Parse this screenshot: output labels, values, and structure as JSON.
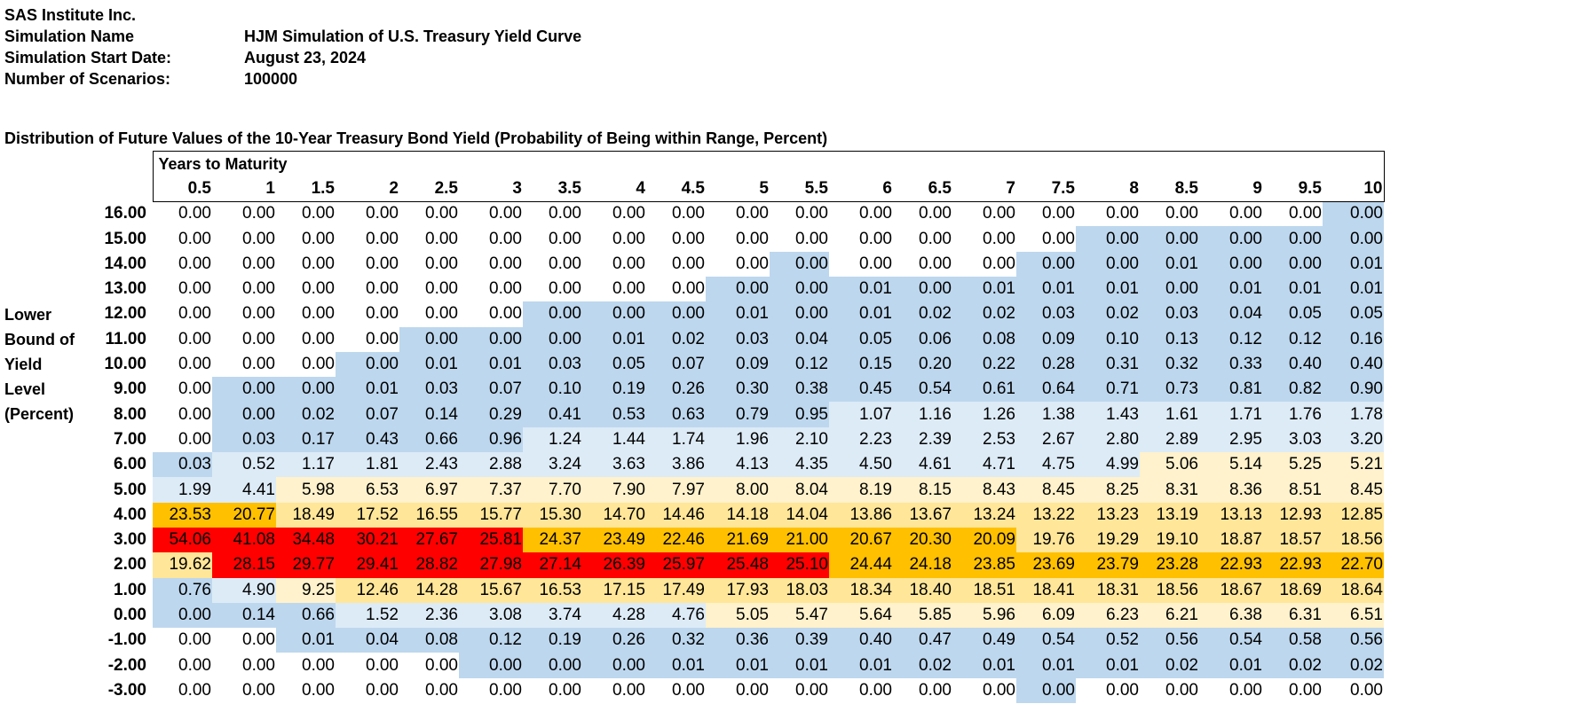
{
  "header": {
    "company": "SAS Institute Inc.",
    "simulation_name_label": "Simulation Name",
    "simulation_name": "HJM Simulation of U.S. Treasury Yield Curve",
    "start_date_label": "Simulation Start Date:",
    "start_date": "August 23, 2024",
    "scenarios_label": "Number of Scenarios:",
    "scenarios": "100000"
  },
  "table_title": "Distribution of Future Values of the 10-Year Treasury Bond Yield (Probability of Being within Range, Percent)",
  "years_header": "Years to Maturity",
  "row_axis_label": "Lower Bound of Yield Level (Percent)",
  "row_axis_label_lines": [
    "Lower",
    "Bound of",
    "Yield",
    "Level",
    "(Percent)"
  ],
  "years": [
    "0.5",
    "1",
    "1.5",
    "2",
    "2.5",
    "3",
    "3.5",
    "4",
    "4.5",
    "5",
    "5.5",
    "6",
    "6.5",
    "7",
    "7.5",
    "8",
    "8.5",
    "9",
    "9.5",
    "10"
  ],
  "colors": {
    "white": "#ffffff",
    "blue": "#bdd7ee",
    "lightblue": "#ddebf7",
    "lightyellow": "#fff2cc",
    "lightorange": "#ffe699",
    "orange": "#ffc000",
    "red": "#ff0000"
  },
  "rows": [
    {
      "label": "16.00",
      "values": [
        "0.00",
        "0.00",
        "0.00",
        "0.00",
        "0.00",
        "0.00",
        "0.00",
        "0.00",
        "0.00",
        "0.00",
        "0.00",
        "0.00",
        "0.00",
        "0.00",
        "0.00",
        "0.00",
        "0.00",
        "0.00",
        "0.00",
        "0.00"
      ],
      "shades": [
        "white",
        "white",
        "white",
        "white",
        "white",
        "white",
        "white",
        "white",
        "white",
        "white",
        "white",
        "white",
        "white",
        "white",
        "white",
        "white",
        "white",
        "white",
        "white",
        "blue"
      ]
    },
    {
      "label": "15.00",
      "values": [
        "0.00",
        "0.00",
        "0.00",
        "0.00",
        "0.00",
        "0.00",
        "0.00",
        "0.00",
        "0.00",
        "0.00",
        "0.00",
        "0.00",
        "0.00",
        "0.00",
        "0.00",
        "0.00",
        "0.00",
        "0.00",
        "0.00",
        "0.00"
      ],
      "shades": [
        "white",
        "white",
        "white",
        "white",
        "white",
        "white",
        "white",
        "white",
        "white",
        "white",
        "white",
        "white",
        "white",
        "white",
        "white",
        "blue",
        "blue",
        "blue",
        "blue",
        "blue"
      ]
    },
    {
      "label": "14.00",
      "values": [
        "0.00",
        "0.00",
        "0.00",
        "0.00",
        "0.00",
        "0.00",
        "0.00",
        "0.00",
        "0.00",
        "0.00",
        "0.00",
        "0.00",
        "0.00",
        "0.00",
        "0.00",
        "0.00",
        "0.01",
        "0.00",
        "0.00",
        "0.01"
      ],
      "shades": [
        "white",
        "white",
        "white",
        "white",
        "white",
        "white",
        "white",
        "white",
        "white",
        "white",
        "blue",
        "white",
        "white",
        "white",
        "blue",
        "blue",
        "blue",
        "blue",
        "blue",
        "blue"
      ]
    },
    {
      "label": "13.00",
      "values": [
        "0.00",
        "0.00",
        "0.00",
        "0.00",
        "0.00",
        "0.00",
        "0.00",
        "0.00",
        "0.00",
        "0.00",
        "0.00",
        "0.01",
        "0.00",
        "0.01",
        "0.01",
        "0.01",
        "0.00",
        "0.01",
        "0.01",
        "0.01"
      ],
      "shades": [
        "white",
        "white",
        "white",
        "white",
        "white",
        "white",
        "white",
        "white",
        "white",
        "blue",
        "blue",
        "blue",
        "blue",
        "blue",
        "blue",
        "blue",
        "blue",
        "blue",
        "blue",
        "blue"
      ]
    },
    {
      "label": "12.00",
      "values": [
        "0.00",
        "0.00",
        "0.00",
        "0.00",
        "0.00",
        "0.00",
        "0.00",
        "0.00",
        "0.00",
        "0.01",
        "0.00",
        "0.01",
        "0.02",
        "0.02",
        "0.03",
        "0.02",
        "0.03",
        "0.04",
        "0.05",
        "0.05"
      ],
      "shades": [
        "white",
        "white",
        "white",
        "white",
        "white",
        "white",
        "blue",
        "blue",
        "blue",
        "blue",
        "blue",
        "blue",
        "blue",
        "blue",
        "blue",
        "blue",
        "blue",
        "blue",
        "blue",
        "blue"
      ]
    },
    {
      "label": "11.00",
      "values": [
        "0.00",
        "0.00",
        "0.00",
        "0.00",
        "0.00",
        "0.00",
        "0.00",
        "0.01",
        "0.02",
        "0.03",
        "0.04",
        "0.05",
        "0.06",
        "0.08",
        "0.09",
        "0.10",
        "0.13",
        "0.12",
        "0.12",
        "0.16"
      ],
      "shades": [
        "white",
        "white",
        "white",
        "white",
        "blue",
        "blue",
        "blue",
        "blue",
        "blue",
        "blue",
        "blue",
        "blue",
        "blue",
        "blue",
        "blue",
        "blue",
        "blue",
        "blue",
        "blue",
        "blue"
      ]
    },
    {
      "label": "10.00",
      "values": [
        "0.00",
        "0.00",
        "0.00",
        "0.00",
        "0.01",
        "0.01",
        "0.03",
        "0.05",
        "0.07",
        "0.09",
        "0.12",
        "0.15",
        "0.20",
        "0.22",
        "0.28",
        "0.31",
        "0.32",
        "0.33",
        "0.40",
        "0.40"
      ],
      "shades": [
        "white",
        "white",
        "white",
        "blue",
        "blue",
        "blue",
        "blue",
        "blue",
        "blue",
        "blue",
        "blue",
        "blue",
        "blue",
        "blue",
        "blue",
        "blue",
        "blue",
        "blue",
        "blue",
        "blue"
      ]
    },
    {
      "label": "9.00",
      "values": [
        "0.00",
        "0.00",
        "0.00",
        "0.01",
        "0.03",
        "0.07",
        "0.10",
        "0.19",
        "0.26",
        "0.30",
        "0.38",
        "0.45",
        "0.54",
        "0.61",
        "0.64",
        "0.71",
        "0.73",
        "0.81",
        "0.82",
        "0.90"
      ],
      "shades": [
        "white",
        "blue",
        "blue",
        "blue",
        "blue",
        "blue",
        "blue",
        "blue",
        "blue",
        "blue",
        "blue",
        "blue",
        "blue",
        "blue",
        "blue",
        "blue",
        "blue",
        "blue",
        "blue",
        "blue"
      ]
    },
    {
      "label": "8.00",
      "values": [
        "0.00",
        "0.00",
        "0.02",
        "0.07",
        "0.14",
        "0.29",
        "0.41",
        "0.53",
        "0.63",
        "0.79",
        "0.95",
        "1.07",
        "1.16",
        "1.26",
        "1.38",
        "1.43",
        "1.61",
        "1.71",
        "1.76",
        "1.78"
      ],
      "shades": [
        "white",
        "blue",
        "blue",
        "blue",
        "blue",
        "blue",
        "blue",
        "blue",
        "blue",
        "blue",
        "blue",
        "lightblue",
        "lightblue",
        "lightblue",
        "lightblue",
        "lightblue",
        "lightblue",
        "lightblue",
        "lightblue",
        "lightblue"
      ]
    },
    {
      "label": "7.00",
      "values": [
        "0.00",
        "0.03",
        "0.17",
        "0.43",
        "0.66",
        "0.96",
        "1.24",
        "1.44",
        "1.74",
        "1.96",
        "2.10",
        "2.23",
        "2.39",
        "2.53",
        "2.67",
        "2.80",
        "2.89",
        "2.95",
        "3.03",
        "3.20"
      ],
      "shades": [
        "white",
        "blue",
        "blue",
        "blue",
        "blue",
        "blue",
        "lightblue",
        "lightblue",
        "lightblue",
        "lightblue",
        "lightblue",
        "lightblue",
        "lightblue",
        "lightblue",
        "lightblue",
        "lightblue",
        "lightblue",
        "lightblue",
        "lightblue",
        "lightblue"
      ]
    },
    {
      "label": "6.00",
      "values": [
        "0.03",
        "0.52",
        "1.17",
        "1.81",
        "2.43",
        "2.88",
        "3.24",
        "3.63",
        "3.86",
        "4.13",
        "4.35",
        "4.50",
        "4.61",
        "4.71",
        "4.75",
        "4.99",
        "5.06",
        "5.14",
        "5.25",
        "5.21"
      ],
      "shades": [
        "blue",
        "lightblue",
        "lightblue",
        "lightblue",
        "lightblue",
        "lightblue",
        "lightblue",
        "lightblue",
        "lightblue",
        "lightblue",
        "lightblue",
        "lightblue",
        "lightblue",
        "lightblue",
        "lightblue",
        "lightblue",
        "lightyellow",
        "lightyellow",
        "lightyellow",
        "lightyellow"
      ]
    },
    {
      "label": "5.00",
      "values": [
        "1.99",
        "4.41",
        "5.98",
        "6.53",
        "6.97",
        "7.37",
        "7.70",
        "7.90",
        "7.97",
        "8.00",
        "8.04",
        "8.19",
        "8.15",
        "8.43",
        "8.45",
        "8.25",
        "8.31",
        "8.36",
        "8.51",
        "8.45"
      ],
      "shades": [
        "lightblue",
        "lightblue",
        "lightyellow",
        "lightyellow",
        "lightyellow",
        "lightyellow",
        "lightyellow",
        "lightyellow",
        "lightyellow",
        "lightyellow",
        "lightyellow",
        "lightyellow",
        "lightyellow",
        "lightyellow",
        "lightyellow",
        "lightyellow",
        "lightyellow",
        "lightyellow",
        "lightyellow",
        "lightyellow"
      ]
    },
    {
      "label": "4.00",
      "values": [
        "23.53",
        "20.77",
        "18.49",
        "17.52",
        "16.55",
        "15.77",
        "15.30",
        "14.70",
        "14.46",
        "14.18",
        "14.04",
        "13.86",
        "13.67",
        "13.24",
        "13.22",
        "13.23",
        "13.19",
        "13.13",
        "12.93",
        "12.85"
      ],
      "shades": [
        "orange",
        "orange",
        "lightorange",
        "lightorange",
        "lightorange",
        "lightorange",
        "lightorange",
        "lightorange",
        "lightorange",
        "lightorange",
        "lightorange",
        "lightorange",
        "lightorange",
        "lightorange",
        "lightorange",
        "lightorange",
        "lightorange",
        "lightorange",
        "lightorange",
        "lightorange"
      ]
    },
    {
      "label": "3.00",
      "values": [
        "54.06",
        "41.08",
        "34.48",
        "30.21",
        "27.67",
        "25.81",
        "24.37",
        "23.49",
        "22.46",
        "21.69",
        "21.00",
        "20.67",
        "20.30",
        "20.09",
        "19.76",
        "19.29",
        "19.10",
        "18.87",
        "18.57",
        "18.56"
      ],
      "shades": [
        "red",
        "red",
        "red",
        "red",
        "red",
        "red",
        "orange",
        "orange",
        "orange",
        "orange",
        "orange",
        "orange",
        "orange",
        "orange",
        "lightorange",
        "lightorange",
        "lightorange",
        "lightorange",
        "lightorange",
        "lightorange"
      ]
    },
    {
      "label": "2.00",
      "values": [
        "19.62",
        "28.15",
        "29.77",
        "29.41",
        "28.82",
        "27.98",
        "27.14",
        "26.39",
        "25.97",
        "25.48",
        "25.10",
        "24.44",
        "24.18",
        "23.85",
        "23.69",
        "23.79",
        "23.28",
        "22.93",
        "22.93",
        "22.70"
      ],
      "shades": [
        "lightorange",
        "red",
        "red",
        "red",
        "red",
        "red",
        "red",
        "red",
        "red",
        "red",
        "red",
        "orange",
        "orange",
        "orange",
        "orange",
        "orange",
        "orange",
        "orange",
        "orange",
        "orange"
      ]
    },
    {
      "label": "1.00",
      "values": [
        "0.76",
        "4.90",
        "9.25",
        "12.46",
        "14.28",
        "15.67",
        "16.53",
        "17.15",
        "17.49",
        "17.93",
        "18.03",
        "18.34",
        "18.40",
        "18.51",
        "18.41",
        "18.31",
        "18.56",
        "18.67",
        "18.69",
        "18.64"
      ],
      "shades": [
        "blue",
        "lightblue",
        "lightyellow",
        "lightorange",
        "lightorange",
        "lightorange",
        "lightorange",
        "lightorange",
        "lightorange",
        "lightorange",
        "lightorange",
        "lightorange",
        "lightorange",
        "lightorange",
        "lightorange",
        "lightorange",
        "lightorange",
        "lightorange",
        "lightorange",
        "lightorange"
      ]
    },
    {
      "label": "0.00",
      "values": [
        "0.00",
        "0.14",
        "0.66",
        "1.52",
        "2.36",
        "3.08",
        "3.74",
        "4.28",
        "4.76",
        "5.05",
        "5.47",
        "5.64",
        "5.85",
        "5.96",
        "6.09",
        "6.23",
        "6.21",
        "6.38",
        "6.31",
        "6.51"
      ],
      "shades": [
        "blue",
        "blue",
        "blue",
        "lightblue",
        "lightblue",
        "lightblue",
        "lightblue",
        "lightblue",
        "lightblue",
        "lightyellow",
        "lightyellow",
        "lightyellow",
        "lightyellow",
        "lightyellow",
        "lightyellow",
        "lightyellow",
        "lightyellow",
        "lightyellow",
        "lightyellow",
        "lightyellow"
      ]
    },
    {
      "label": "-1.00",
      "values": [
        "0.00",
        "0.00",
        "0.01",
        "0.04",
        "0.08",
        "0.12",
        "0.19",
        "0.26",
        "0.32",
        "0.36",
        "0.39",
        "0.40",
        "0.47",
        "0.49",
        "0.54",
        "0.52",
        "0.56",
        "0.54",
        "0.58",
        "0.56"
      ],
      "shades": [
        "white",
        "white",
        "blue",
        "blue",
        "blue",
        "blue",
        "blue",
        "blue",
        "blue",
        "blue",
        "blue",
        "blue",
        "blue",
        "blue",
        "blue",
        "blue",
        "blue",
        "blue",
        "blue",
        "blue"
      ]
    },
    {
      "label": "-2.00",
      "values": [
        "0.00",
        "0.00",
        "0.00",
        "0.00",
        "0.00",
        "0.00",
        "0.00",
        "0.00",
        "0.01",
        "0.01",
        "0.01",
        "0.01",
        "0.02",
        "0.01",
        "0.01",
        "0.01",
        "0.02",
        "0.01",
        "0.02",
        "0.02"
      ],
      "shades": [
        "white",
        "white",
        "white",
        "white",
        "white",
        "blue",
        "blue",
        "blue",
        "blue",
        "blue",
        "blue",
        "blue",
        "blue",
        "blue",
        "blue",
        "blue",
        "blue",
        "blue",
        "blue",
        "blue"
      ]
    },
    {
      "label": "-3.00",
      "values": [
        "0.00",
        "0.00",
        "0.00",
        "0.00",
        "0.00",
        "0.00",
        "0.00",
        "0.00",
        "0.00",
        "0.00",
        "0.00",
        "0.00",
        "0.00",
        "0.00",
        "0.00",
        "0.00",
        "0.00",
        "0.00",
        "0.00",
        "0.00"
      ],
      "shades": [
        "white",
        "white",
        "white",
        "white",
        "white",
        "white",
        "white",
        "white",
        "white",
        "white",
        "white",
        "white",
        "white",
        "white",
        "blue",
        "white",
        "white",
        "white",
        "white",
        "white"
      ]
    }
  ]
}
